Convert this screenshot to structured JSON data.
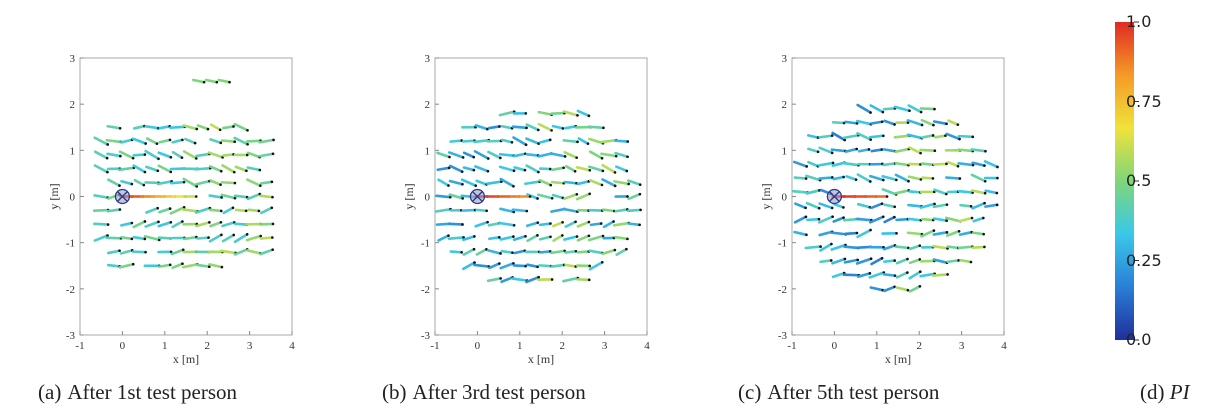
{
  "colors": {
    "axis": "#555555",
    "marker": "#2b3a8c",
    "colormap": [
      "#1f2f9a",
      "#2a7fd6",
      "#39c8e8",
      "#7fd67a",
      "#f0e23a",
      "#f59a26",
      "#e02a23"
    ]
  },
  "chart_data": [
    {
      "type": "quiver",
      "title": "",
      "caption_label": "(a)",
      "caption_text": "After 1st test person",
      "xlabel": "x [m]",
      "ylabel": "y [m]",
      "xlim": [
        -1,
        4
      ],
      "ylim": [
        -3,
        3
      ],
      "xticks": [
        "-1",
        "0",
        "1",
        "2",
        "3",
        "4"
      ],
      "yticks": [
        "3",
        "2",
        "1",
        "0",
        "-1",
        "-2",
        "-3"
      ],
      "marker": {
        "x": 0,
        "y": 0,
        "symbol": "circled-x"
      },
      "arrow_field": {
        "x_range": [
          -0.5,
          3.5
        ],
        "y_range": [
          -1.5,
          1.5
        ],
        "spacing": 0.3,
        "extra_region": {
          "x_range": [
            1.8,
            2.4
          ],
          "y_range": [
            2.4,
            2.6
          ]
        },
        "value_range": [
          0.25,
          0.6
        ]
      },
      "hotspot": {
        "x_range": [
          0.1,
          1.6
        ],
        "y": 0,
        "value_range": [
          0.6,
          1.0
        ]
      }
    },
    {
      "type": "quiver",
      "title": "",
      "caption_label": "(b)",
      "caption_text": "After 3rd test person",
      "xlabel": "x [m]",
      "ylabel": "y [m]",
      "xlim": [
        -1,
        4
      ],
      "ylim": [
        -3,
        3
      ],
      "xticks": [
        "-1",
        "0",
        "1",
        "2",
        "3",
        "4"
      ],
      "yticks": [
        "3",
        "2",
        "1",
        "0",
        "-1",
        "-2",
        "-3"
      ],
      "marker": {
        "x": 0,
        "y": 0,
        "symbol": "circled-x"
      },
      "arrow_field": {
        "x_range": [
          -0.8,
          3.7
        ],
        "y_range": [
          -1.8,
          2.3
        ],
        "spacing": 0.3,
        "value_range": [
          0.1,
          0.6
        ]
      },
      "hotspot": {
        "x_range": [
          0.1,
          1.1
        ],
        "y": 0,
        "value_range": [
          0.85,
          1.0
        ]
      }
    },
    {
      "type": "quiver",
      "title": "",
      "caption_label": "(c)",
      "caption_text": "After 5th test person",
      "xlabel": "x [m]",
      "ylabel": "y [m]",
      "xlim": [
        -1,
        4
      ],
      "ylim": [
        -3,
        3
      ],
      "xticks": [
        "-1",
        "0",
        "1",
        "2",
        "3",
        "4"
      ],
      "yticks": [
        "3",
        "2",
        "1",
        "0",
        "-1",
        "-2",
        "-3"
      ],
      "marker": {
        "x": 0,
        "y": 0,
        "symbol": "circled-x"
      },
      "arrow_field": {
        "x_range": [
          -0.8,
          3.7
        ],
        "y_range": [
          -2.0,
          2.4
        ],
        "spacing": 0.3,
        "value_range": [
          0.05,
          0.6
        ]
      },
      "hotspot": {
        "x_range": [
          0.1,
          1.1
        ],
        "y": 0,
        "value_range": [
          0.9,
          1.0
        ]
      }
    }
  ],
  "colorbar": {
    "ticks": [
      "1.0",
      "0.75",
      "0.5",
      "0.25",
      "0.0"
    ],
    "tick_values": [
      1.0,
      0.75,
      0.5,
      0.25,
      0.0
    ],
    "caption_label": "(d)",
    "caption_text": "PI"
  }
}
